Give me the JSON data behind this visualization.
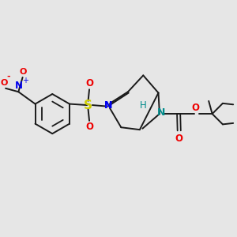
{
  "bg_color": "#e6e6e6",
  "bond_color": "#1a1a1a",
  "N_color": "#0000ee",
  "N2_color": "#008b8b",
  "O_color": "#ee0000",
  "S_color": "#cccc00",
  "figsize": [
    3.0,
    3.0
  ],
  "dpi": 100,
  "xlim": [
    0,
    10
  ],
  "ylim": [
    0,
    10
  ]
}
